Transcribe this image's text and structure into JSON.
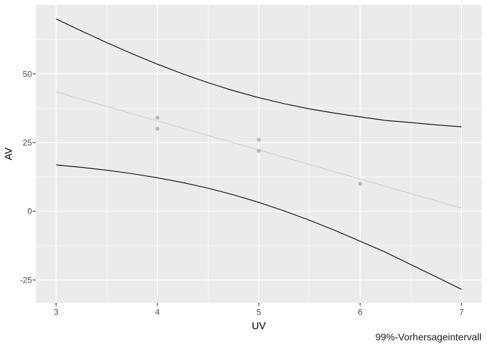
{
  "chart_data": {
    "type": "scatter",
    "title": "",
    "xlabel": "UV",
    "ylabel": "AV",
    "caption": "99%-Vorhersageintervall",
    "x_ticks": [
      3,
      4,
      5,
      6,
      7
    ],
    "y_ticks": [
      -25,
      0,
      25,
      50
    ],
    "xlim": [
      2.8,
      7.2
    ],
    "ylim": [
      -33.3,
      75.1
    ],
    "grid": "white major and minor gridlines on grey panel",
    "legend_position": "none",
    "points": [
      {
        "x": 4,
        "y": 34
      },
      {
        "x": 4,
        "y": 30
      },
      {
        "x": 5,
        "y": 26
      },
      {
        "x": 5,
        "y": 22
      },
      {
        "x": 6,
        "y": 10
      }
    ],
    "regression_line": {
      "x": [
        3,
        7
      ],
      "y": [
        43.43,
        1.14
      ]
    },
    "prediction_band": {
      "level": "99%",
      "x": [
        3,
        3.25,
        3.5,
        3.75,
        4,
        4.25,
        4.5,
        4.75,
        5,
        5.25,
        5.5,
        5.75,
        6,
        6.25,
        6.5,
        6.75,
        7
      ],
      "upper": [
        69.97,
        65.59,
        61.36,
        57.33,
        53.52,
        49.99,
        46.76,
        43.87,
        41.34,
        39.14,
        37.27,
        35.69,
        34.35,
        33.04,
        32.26,
        31.44,
        30.73
      ],
      "lower": [
        16.88,
        15.98,
        14.92,
        13.67,
        12.19,
        10.44,
        8.38,
        5.98,
        3.23,
        0.14,
        -3.27,
        -6.97,
        -10.92,
        -14.9,
        -19.4,
        -23.87,
        -28.44
      ]
    },
    "colors": {
      "figure_background": "#ffffff",
      "panel_background": "#ebebeb",
      "gridline": "#ffffff",
      "prediction_curve": "#000000",
      "regression_line": "#d0d0d0",
      "point": "#b8b8b8",
      "tick_mark": "#333333",
      "tick_label": "#4d4d4d",
      "axis_title": "#000000",
      "caption": "#1a1a1a"
    }
  }
}
